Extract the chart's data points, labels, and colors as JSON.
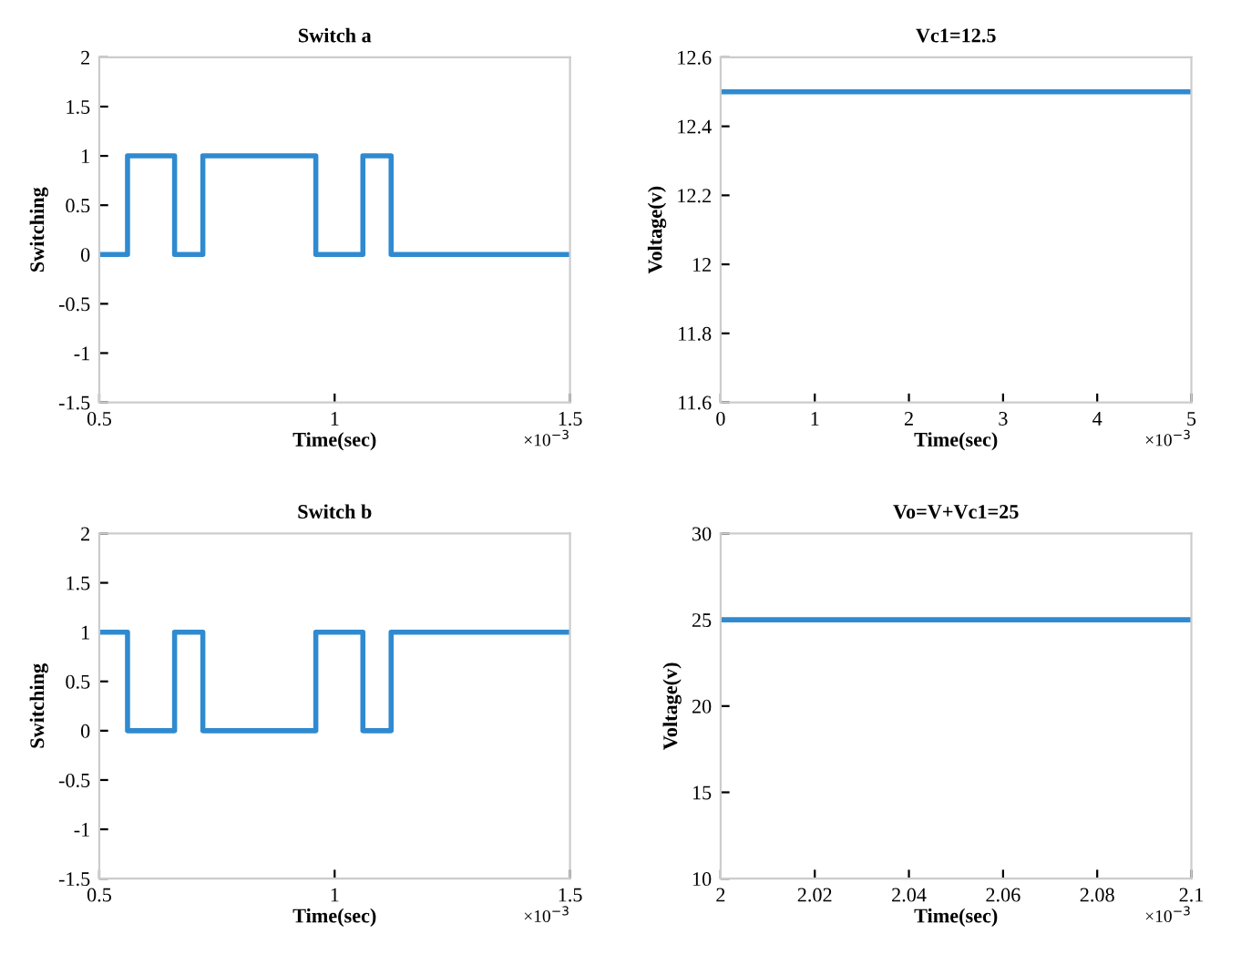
{
  "chart_data": [
    {
      "type": "step",
      "title": "Switch a",
      "xlabel": "Time(sec)",
      "ylabel": "Switching",
      "annotations": [
        "×10$^{−3}$"
      ],
      "series": [
        {
          "color": "#2f8ad0",
          "x": [
            0.5,
            0.56,
            0.66,
            0.72,
            0.96,
            1.06,
            1.12,
            1.5
          ],
          "values": [
            0,
            1,
            0,
            1,
            0,
            1,
            0,
            0
          ]
        }
      ],
      "xlim": [
        0.5,
        1.5
      ],
      "xticks": [
        0.5,
        1,
        1.5
      ],
      "ylim": [
        -1.5,
        2
      ],
      "yticks": [
        -1.5,
        -1,
        -0.5,
        0,
        0.5,
        1,
        1.5,
        2
      ]
    },
    {
      "type": "line",
      "title": "Vc1=12.5",
      "xlabel": "Time(sec)",
      "ylabel": "Voltage(v)",
      "annotations": [
        "×10$^{−3}$"
      ],
      "series": [
        {
          "color": "#2f8ad0",
          "x": [
            0,
            5
          ],
          "values": [
            12.5,
            12.5
          ]
        }
      ],
      "xlim": [
        0,
        5
      ],
      "xticks": [
        0,
        1,
        2,
        3,
        4,
        5
      ],
      "ylim": [
        11.6,
        12.6
      ],
      "yticks": [
        11.6,
        11.8,
        12,
        12.2,
        12.4,
        12.6
      ]
    },
    {
      "type": "step",
      "title": "Switch b",
      "xlabel": "Time(sec)",
      "ylabel": "Switching",
      "annotations": [
        "×10$^{−3}$"
      ],
      "series": [
        {
          "color": "#2f8ad0",
          "x": [
            0.5,
            0.56,
            0.66,
            0.72,
            0.96,
            1.06,
            1.12,
            1.5
          ],
          "values": [
            1,
            0,
            1,
            0,
            1,
            0,
            1,
            1
          ]
        }
      ],
      "xlim": [
        0.5,
        1.5
      ],
      "xticks": [
        0.5,
        1,
        1.5
      ],
      "ylim": [
        -1.5,
        2
      ],
      "yticks": [
        -1.5,
        -1,
        -0.5,
        0,
        0.5,
        1,
        1.5,
        2
      ]
    },
    {
      "type": "line",
      "title": "Vo=V+Vc1=25",
      "xlabel": "Time(sec)",
      "ylabel": "Voltage(v)",
      "annotations": [
        "×10$^{−3}$"
      ],
      "series": [
        {
          "color": "#2f8ad0",
          "x": [
            2,
            2.1
          ],
          "values": [
            25,
            25
          ]
        }
      ],
      "xlim": [
        2,
        2.1
      ],
      "xticks": [
        2,
        2.02,
        2.04,
        2.06,
        2.08,
        2.1
      ],
      "ylim": [
        10,
        30
      ],
      "yticks": [
        10,
        15,
        20,
        25,
        30
      ]
    }
  ]
}
